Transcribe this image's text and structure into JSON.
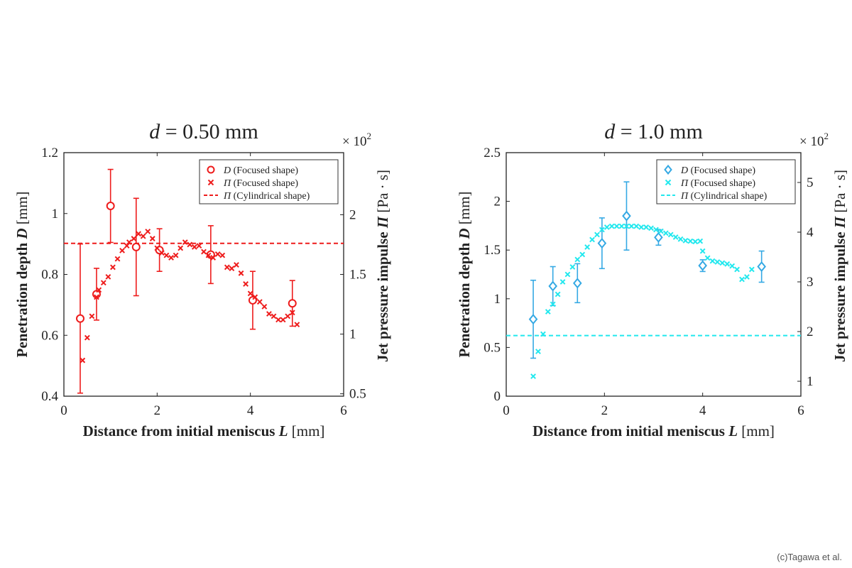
{
  "credit": "(c)Tagawa et al.",
  "chart_data": [
    {
      "type": "scatter",
      "title": "d = 0.50 mm",
      "title_var": "d",
      "title_rest": " = 0.50 mm",
      "xlabel": "Distance from initial meniscus",
      "xlabel_var": "L",
      "xlabel_unit": "[mm]",
      "ylabel": "Penetration depth",
      "ylabel_var": "D",
      "ylabel_unit": "[mm]",
      "y2label": "Jet pressure impulse",
      "y2label_var": "Π",
      "y2label_unit": "[Pa · s]",
      "y2_multiplier": "× 10",
      "y2_multiplier_exp": "2",
      "xlim": [
        0,
        6
      ],
      "ylim": [
        0.4,
        1.2
      ],
      "y2lim": [
        0.48,
        2.52
      ],
      "xticks": [
        "0",
        "2",
        "4",
        "6"
      ],
      "xtick_values": [
        0,
        2,
        4,
        6
      ],
      "yticks": [
        "0.4",
        "0.6",
        "0.8",
        "1",
        "1.2"
      ],
      "ytick_values": [
        0.4,
        0.6,
        0.8,
        1.0,
        1.2
      ],
      "y2ticks": [
        "0.5",
        "1",
        "1.5",
        "2"
      ],
      "y2tick_values": [
        0.5,
        1.0,
        1.5,
        2.0
      ],
      "color": "#ee1c1c",
      "legend_position": "top-right",
      "legend": [
        {
          "marker": "circle",
          "var": "D",
          "text": "(Focused shape)"
        },
        {
          "marker": "cross",
          "var": "Π",
          "text": "(Focused shape)"
        },
        {
          "marker": "dashed",
          "var": "Π",
          "text": "(Cylindrical shape)"
        }
      ],
      "series": [
        {
          "name": "D (Focused shape)",
          "axis": "left",
          "marker": "circle",
          "points": [
            {
              "x": 0.35,
              "y": 0.655,
              "err": 0.245
            },
            {
              "x": 0.7,
              "y": 0.735,
              "err": 0.085
            },
            {
              "x": 1.0,
              "y": 1.025,
              "err": 0.12
            },
            {
              "x": 1.55,
              "y": 0.89,
              "err": 0.16
            },
            {
              "x": 2.05,
              "y": 0.88,
              "err": 0.07
            },
            {
              "x": 3.15,
              "y": 0.865,
              "err": 0.095
            },
            {
              "x": 4.05,
              "y": 0.715,
              "err": 0.095
            },
            {
              "x": 4.9,
              "y": 0.705,
              "err": 0.075
            }
          ]
        },
        {
          "name": "Π (Focused shape)",
          "axis": "right",
          "marker": "cross",
          "points": [
            {
              "x": 0.4,
              "y": 0.78
            },
            {
              "x": 0.5,
              "y": 0.97
            },
            {
              "x": 0.6,
              "y": 1.15
            },
            {
              "x": 0.7,
              "y": 1.31
            },
            {
              "x": 0.75,
              "y": 1.37
            },
            {
              "x": 0.85,
              "y": 1.43
            },
            {
              "x": 0.95,
              "y": 1.48
            },
            {
              "x": 1.05,
              "y": 1.56
            },
            {
              "x": 1.15,
              "y": 1.63
            },
            {
              "x": 1.25,
              "y": 1.7
            },
            {
              "x": 1.35,
              "y": 1.74
            },
            {
              "x": 1.4,
              "y": 1.77
            },
            {
              "x": 1.5,
              "y": 1.8
            },
            {
              "x": 1.6,
              "y": 1.84
            },
            {
              "x": 1.7,
              "y": 1.82
            },
            {
              "x": 1.8,
              "y": 1.86
            },
            {
              "x": 1.9,
              "y": 1.8
            },
            {
              "x": 2.0,
              "y": 1.72
            },
            {
              "x": 2.1,
              "y": 1.68
            },
            {
              "x": 2.2,
              "y": 1.66
            },
            {
              "x": 2.3,
              "y": 1.64
            },
            {
              "x": 2.4,
              "y": 1.66
            },
            {
              "x": 2.5,
              "y": 1.72
            },
            {
              "x": 2.6,
              "y": 1.77
            },
            {
              "x": 2.7,
              "y": 1.75
            },
            {
              "x": 2.8,
              "y": 1.73
            },
            {
              "x": 2.9,
              "y": 1.74
            },
            {
              "x": 3.0,
              "y": 1.69
            },
            {
              "x": 3.1,
              "y": 1.66
            },
            {
              "x": 3.2,
              "y": 1.64
            },
            {
              "x": 3.3,
              "y": 1.67
            },
            {
              "x": 3.4,
              "y": 1.66
            },
            {
              "x": 3.5,
              "y": 1.56
            },
            {
              "x": 3.6,
              "y": 1.55
            },
            {
              "x": 3.7,
              "y": 1.58
            },
            {
              "x": 3.8,
              "y": 1.51
            },
            {
              "x": 3.9,
              "y": 1.42
            },
            {
              "x": 4.0,
              "y": 1.34
            },
            {
              "x": 4.1,
              "y": 1.31
            },
            {
              "x": 4.2,
              "y": 1.27
            },
            {
              "x": 4.3,
              "y": 1.23
            },
            {
              "x": 4.4,
              "y": 1.17
            },
            {
              "x": 4.5,
              "y": 1.15
            },
            {
              "x": 4.6,
              "y": 1.12
            },
            {
              "x": 4.7,
              "y": 1.12
            },
            {
              "x": 4.8,
              "y": 1.15
            },
            {
              "x": 4.9,
              "y": 1.18
            },
            {
              "x": 5.0,
              "y": 1.08
            }
          ]
        },
        {
          "name": "Π (Cylindrical shape)",
          "axis": "right",
          "marker": "dashed",
          "y": 1.76
        }
      ]
    },
    {
      "type": "scatter",
      "title": "d = 1.0 mm",
      "title_var": "d",
      "title_rest": " = 1.0 mm",
      "xlabel": "Distance from initial meniscus",
      "xlabel_var": "L",
      "xlabel_unit": "[mm]",
      "ylabel": "Penetration depth",
      "ylabel_var": "D",
      "ylabel_unit": "[mm]",
      "y2label": "Jet pressure impulse",
      "y2label_var": "Π",
      "y2label_unit": "[Pa · s]",
      "y2_multiplier": "× 10",
      "y2_multiplier_exp": "2",
      "xlim": [
        0,
        6
      ],
      "ylim": [
        0,
        2.5
      ],
      "y2lim": [
        0.7,
        5.6
      ],
      "xticks": [
        "0",
        "2",
        "4",
        "6"
      ],
      "xtick_values": [
        0,
        2,
        4,
        6
      ],
      "yticks": [
        "0",
        "0.5",
        "1",
        "1.5",
        "2",
        "2.5"
      ],
      "ytick_values": [
        0,
        0.5,
        1.0,
        1.5,
        2.0,
        2.5
      ],
      "y2ticks": [
        "1",
        "2",
        "3",
        "4",
        "5"
      ],
      "y2tick_values": [
        1,
        2,
        3,
        4,
        5
      ],
      "color": "#22e8ee",
      "marker_color": "#35a9e4",
      "legend_position": "top-right",
      "legend": [
        {
          "marker": "diamond",
          "var": "D",
          "text": "(Focused shape)"
        },
        {
          "marker": "cross",
          "var": "Π",
          "text": "(Focused shape)"
        },
        {
          "marker": "dashed",
          "var": "Π",
          "text": "(Cylindrical shape)"
        }
      ],
      "series": [
        {
          "name": "D (Focused shape)",
          "axis": "left",
          "marker": "diamond",
          "points": [
            {
              "x": 0.55,
              "y": 0.79,
              "err": 0.4
            },
            {
              "x": 0.95,
              "y": 1.13,
              "err": 0.2
            },
            {
              "x": 1.45,
              "y": 1.16,
              "err": 0.2
            },
            {
              "x": 1.95,
              "y": 1.57,
              "err": 0.26
            },
            {
              "x": 2.45,
              "y": 1.85,
              "err": 0.35
            },
            {
              "x": 3.1,
              "y": 1.63,
              "err": 0.08
            },
            {
              "x": 4.0,
              "y": 1.34,
              "err": 0.06
            },
            {
              "x": 5.2,
              "y": 1.33,
              "err": 0.16
            }
          ]
        },
        {
          "name": "Π (Focused shape)",
          "axis": "right",
          "marker": "cross",
          "points": [
            {
              "x": 0.55,
              "y": 1.1
            },
            {
              "x": 0.65,
              "y": 1.6
            },
            {
              "x": 0.75,
              "y": 1.95
            },
            {
              "x": 0.85,
              "y": 2.4
            },
            {
              "x": 0.95,
              "y": 2.55
            },
            {
              "x": 1.05,
              "y": 2.75
            },
            {
              "x": 1.15,
              "y": 3.0
            },
            {
              "x": 1.25,
              "y": 3.15
            },
            {
              "x": 1.35,
              "y": 3.3
            },
            {
              "x": 1.45,
              "y": 3.45
            },
            {
              "x": 1.55,
              "y": 3.55
            },
            {
              "x": 1.65,
              "y": 3.7
            },
            {
              "x": 1.75,
              "y": 3.85
            },
            {
              "x": 1.85,
              "y": 3.95
            },
            {
              "x": 1.95,
              "y": 4.05
            },
            {
              "x": 2.05,
              "y": 4.1
            },
            {
              "x": 2.15,
              "y": 4.12
            },
            {
              "x": 2.25,
              "y": 4.12
            },
            {
              "x": 2.35,
              "y": 4.12
            },
            {
              "x": 2.45,
              "y": 4.12
            },
            {
              "x": 2.55,
              "y": 4.12
            },
            {
              "x": 2.65,
              "y": 4.12
            },
            {
              "x": 2.75,
              "y": 4.1
            },
            {
              "x": 2.85,
              "y": 4.1
            },
            {
              "x": 2.95,
              "y": 4.08
            },
            {
              "x": 3.05,
              "y": 4.05
            },
            {
              "x": 3.15,
              "y": 4.02
            },
            {
              "x": 3.25,
              "y": 3.98
            },
            {
              "x": 3.35,
              "y": 3.95
            },
            {
              "x": 3.45,
              "y": 3.9
            },
            {
              "x": 3.55,
              "y": 3.86
            },
            {
              "x": 3.65,
              "y": 3.83
            },
            {
              "x": 3.75,
              "y": 3.82
            },
            {
              "x": 3.85,
              "y": 3.81
            },
            {
              "x": 3.95,
              "y": 3.82
            },
            {
              "x": 4.0,
              "y": 3.62
            },
            {
              "x": 4.1,
              "y": 3.48
            },
            {
              "x": 4.2,
              "y": 3.42
            },
            {
              "x": 4.3,
              "y": 3.4
            },
            {
              "x": 4.4,
              "y": 3.38
            },
            {
              "x": 4.5,
              "y": 3.36
            },
            {
              "x": 4.6,
              "y": 3.32
            },
            {
              "x": 4.7,
              "y": 3.25
            },
            {
              "x": 4.8,
              "y": 3.05
            },
            {
              "x": 4.9,
              "y": 3.1
            },
            {
              "x": 5.0,
              "y": 3.25
            }
          ]
        },
        {
          "name": "Π (Cylindrical shape)",
          "axis": "right",
          "marker": "dashed",
          "y": 1.92
        }
      ]
    }
  ]
}
